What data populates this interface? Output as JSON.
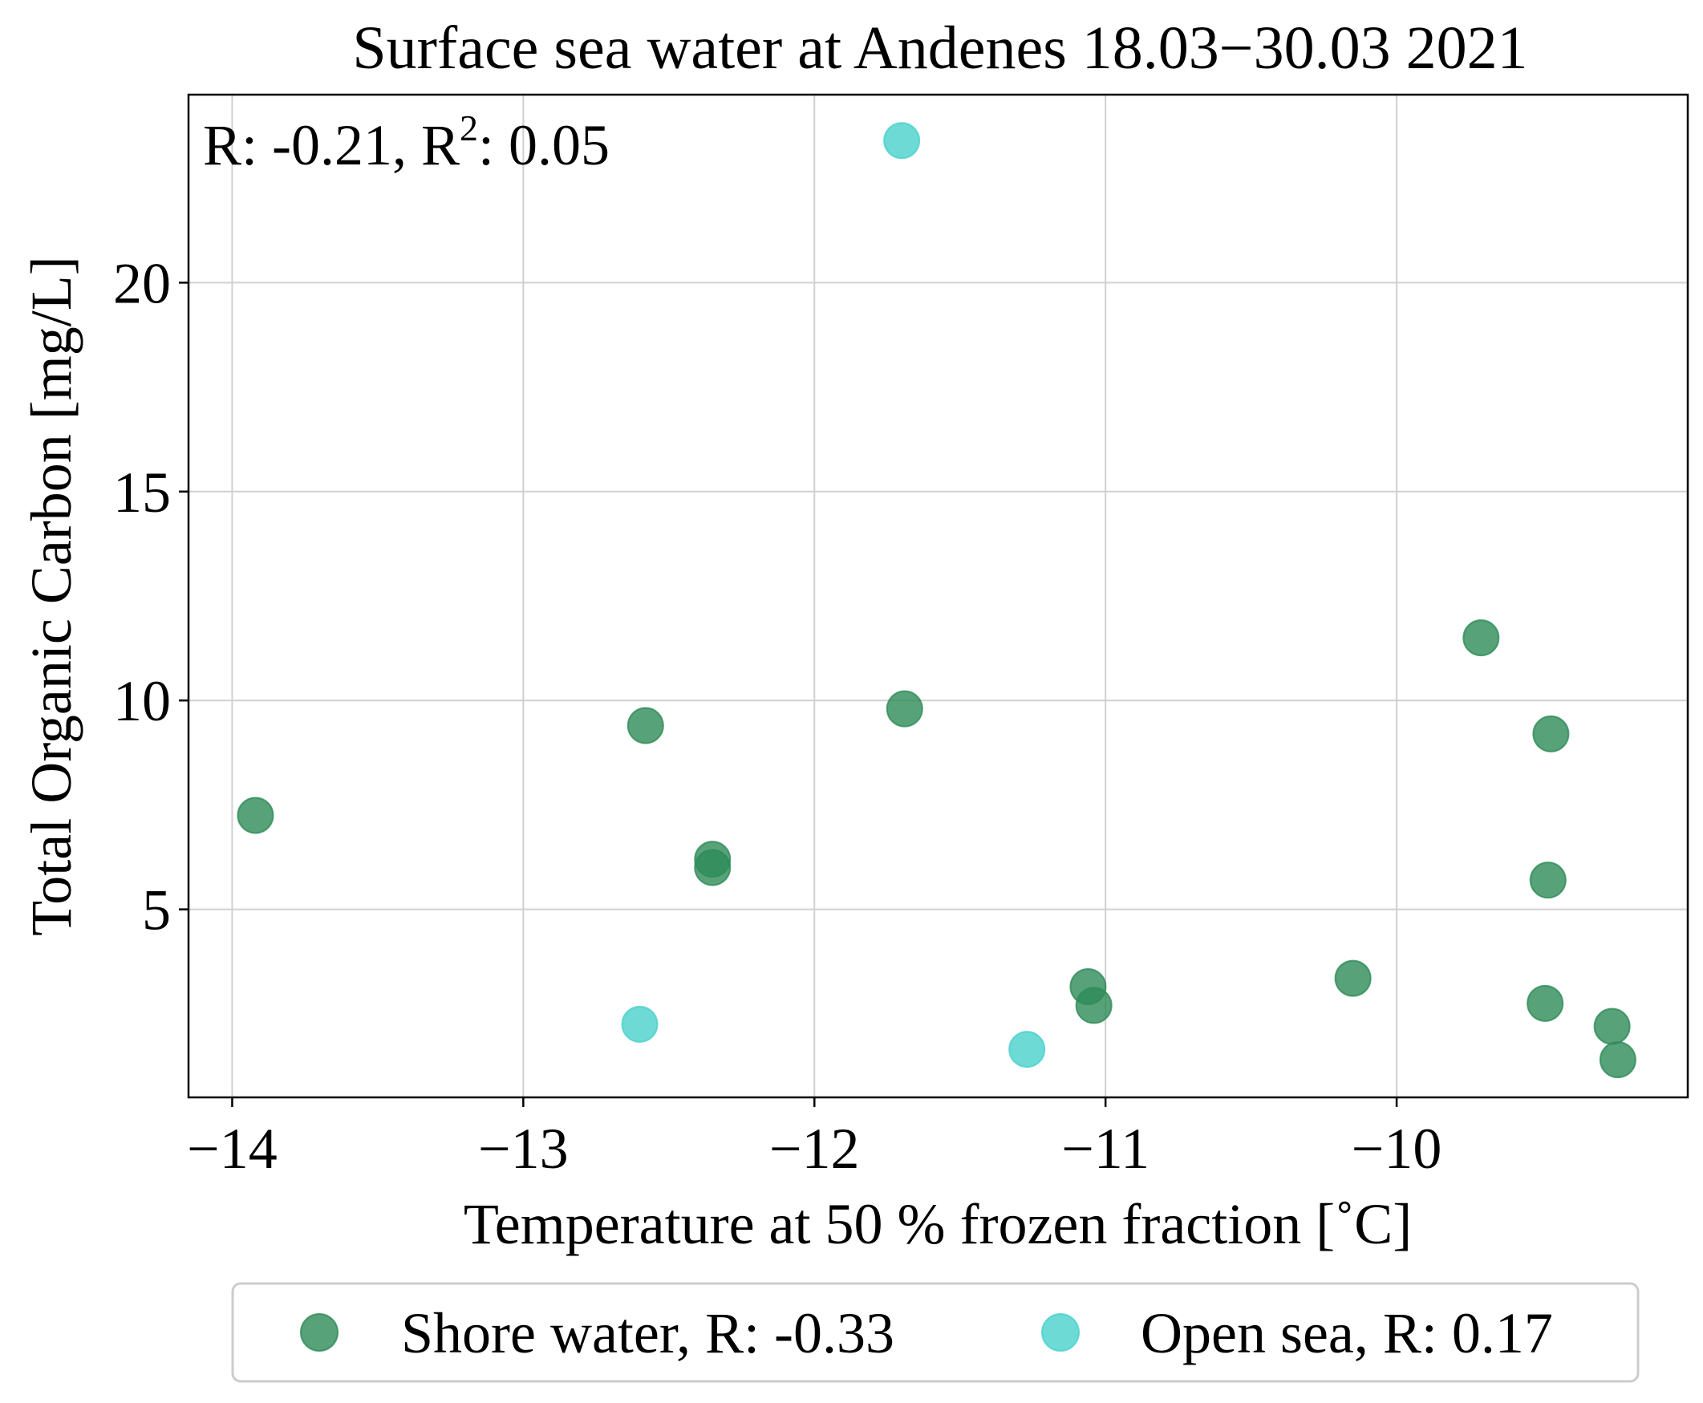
{
  "chart_data": {
    "type": "scatter",
    "title": "Surface sea water at Andenes 18.03−30.03 2021",
    "xlabel": "Temperature at 50 % frozen fraction [˚C]",
    "ylabel": "Total Organic Carbon [mg/L]",
    "xlim": [
      -14.15,
      -9.0
    ],
    "ylim": [
      0.5,
      24.5
    ],
    "xticks": [
      -14,
      -13,
      -12,
      -11,
      -10
    ],
    "yticks": [
      5,
      10,
      15,
      20
    ],
    "xtick_labels": [
      "−14",
      "−13",
      "−12",
      "−11",
      "−10"
    ],
    "ytick_labels": [
      "5",
      "10",
      "15",
      "20"
    ],
    "grid": true,
    "legend_position": "bottom, outside plot",
    "annotation": {
      "r_text": "R: -0.21, R",
      "sup": "2",
      "r2_text": ": 0.05"
    },
    "series": [
      {
        "name": "Shore water, R: -0.33",
        "color": "#2e8b57",
        "points": [
          {
            "x": -13.92,
            "y": 7.25
          },
          {
            "x": -12.58,
            "y": 9.4
          },
          {
            "x": -12.35,
            "y": 6.2
          },
          {
            "x": -12.35,
            "y": 6.0
          },
          {
            "x": -11.69,
            "y": 9.8
          },
          {
            "x": -11.06,
            "y": 3.15
          },
          {
            "x": -11.04,
            "y": 2.7
          },
          {
            "x": -10.15,
            "y": 3.35
          },
          {
            "x": -9.71,
            "y": 11.5
          },
          {
            "x": -9.47,
            "y": 9.2
          },
          {
            "x": -9.48,
            "y": 5.7
          },
          {
            "x": -9.49,
            "y": 2.75
          },
          {
            "x": -9.26,
            "y": 2.2
          },
          {
            "x": -9.24,
            "y": 1.4
          }
        ]
      },
      {
        "name": "Open sea, R: 0.17",
        "color": "#48d1cc",
        "points": [
          {
            "x": -11.7,
            "y": 23.4
          },
          {
            "x": -12.6,
            "y": 2.25
          },
          {
            "x": -11.27,
            "y": 1.65
          }
        ]
      }
    ]
  }
}
